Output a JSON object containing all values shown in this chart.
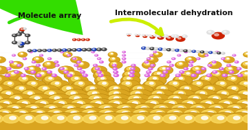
{
  "background_color": "#ffffff",
  "label_molecule_array": "Molecule array",
  "label_intermolecular": "Intermolecular dehydration",
  "gold_base": "#DAA520",
  "gold_highlight": "#FFD700",
  "gold_shadow": "#8B6914",
  "pink": "#dd66dd",
  "carbon": "#555555",
  "nitrogen_blue": "#1a3db5",
  "oxygen_red": "#cc2200",
  "hydrogen_white": "#e8e8e8",
  "figsize": [
    3.62,
    1.89
  ],
  "dpi": 100
}
